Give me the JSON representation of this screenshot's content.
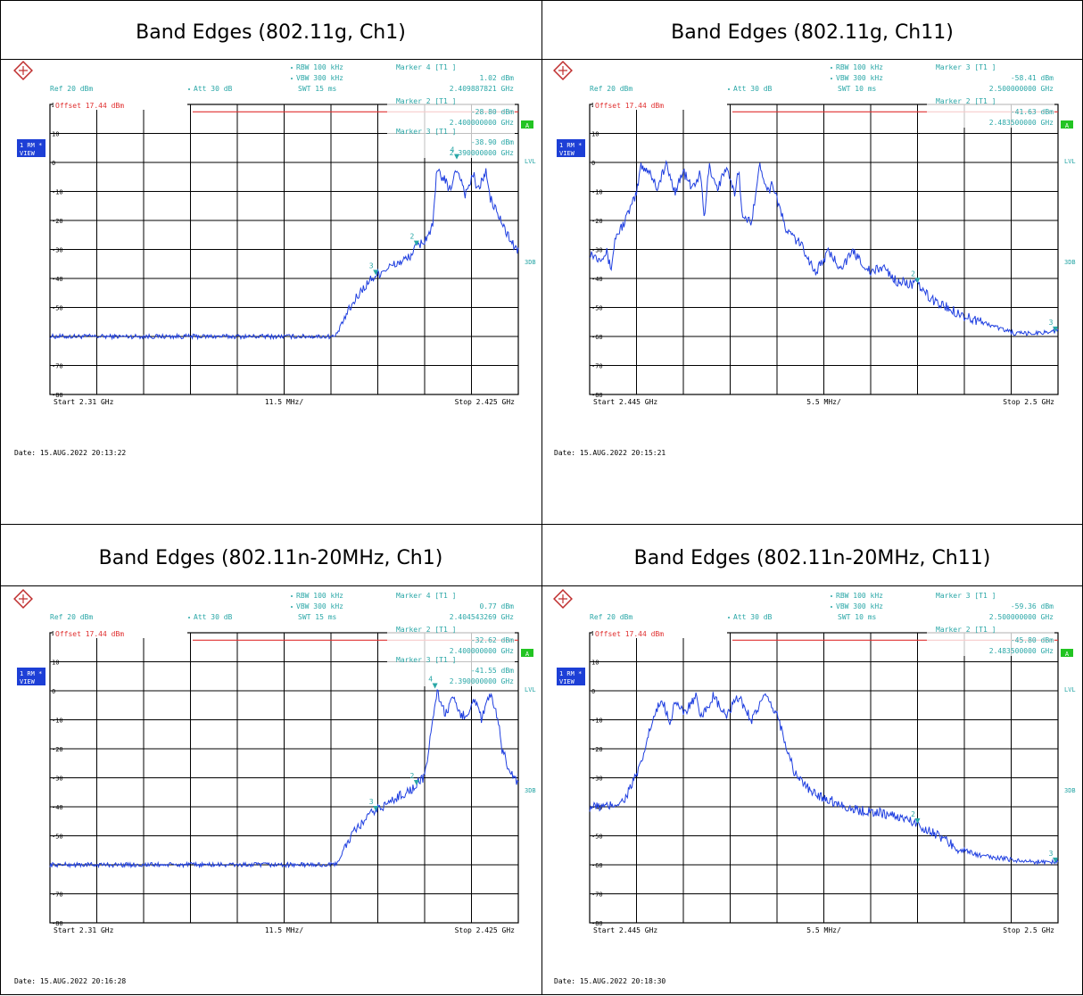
{
  "panels": [
    {
      "title": "Band Edges (802.11g, Ch1)",
      "header": {
        "rbw": "RBW 100 kHz",
        "vbw": "VBW 300 kHz",
        "swt": "SWT 15 ms",
        "ref": "Ref  20 dBm",
        "att": "Att  30 dB",
        "m1_label": "Marker 4 [T1 ]",
        "m1_val": "1.02 dBm",
        "m1_freq": "2.409887821 GHz"
      },
      "overlay": [
        {
          "l": "Marker 2 [T1 ]",
          "v": "-28.80 dBm",
          "f": "2.400000000 GHz"
        },
        {
          "l": "Marker 3 [T1 ]",
          "v": "-38.90 dBm",
          "f": "2.390000000 GHz"
        }
      ],
      "offset": "Offset  17.44  dBm",
      "start": "Start  2.31 GHz",
      "span": "11.5 MHz/",
      "stop": "Stop  2.425 GHz",
      "date": "Date:  15.AUG.2022   20:13:22"
    },
    {
      "title": "Band Edges (802.11g, Ch11)",
      "header": {
        "rbw": "RBW 100 kHz",
        "vbw": "VBW 300 kHz",
        "swt": "SWT 10 ms",
        "ref": "Ref  20 dBm",
        "att": "Att  30 dB",
        "m1_label": "Marker 3 [T1 ]",
        "m1_val": "-58.41 dBm",
        "m1_freq": "2.500000000 GHz"
      },
      "overlay": [
        {
          "l": "Marker 2 [T1 ]",
          "v": "-41.63 dBm",
          "f": "2.483500000 GHz"
        }
      ],
      "offset": "Offset  17.44  dBm",
      "start": "Start  2.445 GHz",
      "span": "5.5 MHz/",
      "stop": "Stop  2.5 GHz",
      "date": "Date:  15.AUG.2022   20:15:21"
    },
    {
      "title": "Band Edges (802.11n-20MHz, Ch1)",
      "header": {
        "rbw": "RBW 100 kHz",
        "vbw": "VBW 300 kHz",
        "swt": "SWT 15 ms",
        "ref": "Ref  20 dBm",
        "att": "Att  30 dB",
        "m1_label": "Marker 4 [T1 ]",
        "m1_val": "0.77 dBm",
        "m1_freq": "2.404543269 GHz"
      },
      "overlay": [
        {
          "l": "Marker 2 [T1 ]",
          "v": "-32.62 dBm",
          "f": "2.400000000 GHz"
        },
        {
          "l": "Marker 3 [T1 ]",
          "v": "-41.55 dBm",
          "f": "2.390000000 GHz"
        }
      ],
      "offset": "Offset  17.44  dBm",
      "start": "Start  2.31 GHz",
      "span": "11.5 MHz/",
      "stop": "Stop  2.425 GHz",
      "date": "Date:  15.AUG.2022   20:16:28"
    },
    {
      "title": "Band Edges (802.11n-20MHz, Ch11)",
      "header": {
        "rbw": "RBW 100 kHz",
        "vbw": "VBW 300 kHz",
        "swt": "SWT 10 ms",
        "ref": "Ref  20 dBm",
        "att": "Att  30 dB",
        "m1_label": "Marker 3 [T1 ]",
        "m1_val": "-59.36 dBm",
        "m1_freq": "2.500000000 GHz"
      },
      "overlay": [
        {
          "l": "Marker 2 [T1 ]",
          "v": "-45.80 dBm",
          "f": "2.483500000 GHz"
        }
      ],
      "offset": "Offset  17.44  dBm",
      "start": "Start  2.445 GHz",
      "span": "5.5 MHz/",
      "stop": "Stop  2.5 GHz",
      "date": "Date:  15.AUG.2022   20:18:30"
    }
  ],
  "side": {
    "trace": "1 RM *",
    "view": "VIEW",
    "lvl": "LVL",
    "db": "3DB",
    "a": "A"
  },
  "colors": {
    "trace": "#1f3fe0",
    "limit": "#e03030",
    "text": "#2aa7a7",
    "grid": "#000000",
    "side_box": "#1d3fd6",
    "a_box": "#22c422"
  },
  "chart_data": [
    {
      "type": "line",
      "ylim": [
        -80,
        20
      ],
      "xlim": [
        2.31,
        2.425
      ],
      "x_unit": "GHz",
      "y_unit": "dBm",
      "grid": true,
      "display_line": 17.44,
      "yticks": [
        20,
        10,
        0,
        -10,
        -20,
        -30,
        -40,
        -50,
        -70,
        -80
      ],
      "markers": [
        {
          "id": "4",
          "x": 2.409887821,
          "y": 1.02
        },
        {
          "id": "2",
          "x": 2.4,
          "y": -28.8
        },
        {
          "id": "3",
          "x": 2.39,
          "y": -38.9
        }
      ],
      "series": [
        {
          "x": [
            2.31,
            2.33,
            2.35,
            2.37,
            2.38,
            2.3805,
            2.383,
            2.386,
            2.389,
            2.392,
            2.395,
            2.398,
            2.4,
            2.402,
            2.404,
            2.405,
            2.407,
            2.408,
            2.41,
            2.411,
            2.412,
            2.414,
            2.415,
            2.417,
            2.418,
            2.42,
            2.422,
            2.424,
            2.425
          ],
          "y": [
            -60,
            -60,
            -60,
            -60,
            -60,
            -59,
            -52,
            -45,
            -40,
            -37,
            -35,
            -33,
            -29,
            -27,
            -22,
            -3,
            -6,
            -10,
            -2,
            -6,
            -11,
            -4,
            -10,
            -3,
            -12,
            -18,
            -24,
            -29,
            -31
          ]
        }
      ]
    },
    {
      "type": "line",
      "ylim": [
        -80,
        20
      ],
      "xlim": [
        2.445,
        2.5
      ],
      "x_unit": "GHz",
      "y_unit": "dBm",
      "grid": true,
      "display_line": 17.44,
      "yticks": [
        20,
        10,
        0,
        -10,
        -20,
        -30,
        -40,
        -50,
        -60,
        -70,
        -80
      ],
      "markers": [
        {
          "id": "2",
          "x": 2.4835,
          "y": -41.63
        },
        {
          "id": "3",
          "x": 2.5,
          "y": -58.41
        }
      ],
      "series": [
        {
          "x": [
            2.445,
            2.446,
            2.447,
            2.4475,
            2.448,
            2.449,
            2.4505,
            2.451,
            2.452,
            2.453,
            2.4535,
            2.454,
            2.455,
            2.456,
            2.457,
            2.458,
            2.4585,
            2.459,
            2.46,
            2.461,
            2.462,
            2.4625,
            2.463,
            2.464,
            2.465,
            2.466,
            2.4665,
            2.468,
            2.47,
            2.4715,
            2.473,
            2.4745,
            2.476,
            2.478,
            2.4795,
            2.481,
            2.483,
            2.4835,
            2.485,
            2.487,
            2.489,
            2.491,
            2.493,
            2.495,
            2.497,
            2.5
          ],
          "y": [
            -31,
            -33,
            -31,
            -37,
            -26,
            -21,
            -11,
            -1,
            -3,
            -9,
            -4,
            -1,
            -10,
            -3,
            -9,
            -4,
            -20,
            -1,
            -9,
            -2,
            -11,
            -2,
            -20,
            -20,
            -1,
            -10,
            -7,
            -23,
            -29,
            -38,
            -31,
            -36,
            -31,
            -38,
            -36,
            -41,
            -42,
            -42,
            -47,
            -50,
            -53,
            -55,
            -57,
            -59,
            -59,
            -58
          ]
        }
      ]
    },
    {
      "type": "line",
      "ylim": [
        -80,
        20
      ],
      "xlim": [
        2.31,
        2.425
      ],
      "x_unit": "GHz",
      "y_unit": "dBm",
      "grid": true,
      "display_line": 17.44,
      "yticks": [
        20,
        10,
        0,
        -10,
        -20,
        -30,
        -40,
        -50,
        -70,
        -80
      ],
      "markers": [
        {
          "id": "4",
          "x": 2.404543269,
          "y": 0.77
        },
        {
          "id": "2",
          "x": 2.4,
          "y": -32.62
        },
        {
          "id": "3",
          "x": 2.39,
          "y": -41.55
        }
      ],
      "series": [
        {
          "x": [
            2.31,
            2.33,
            2.35,
            2.37,
            2.38,
            2.381,
            2.384,
            2.387,
            2.39,
            2.393,
            2.396,
            2.399,
            2.4,
            2.402,
            2.403,
            2.404,
            2.405,
            2.407,
            2.409,
            2.411,
            2.413,
            2.414,
            2.416,
            2.418,
            2.42,
            2.421,
            2.423,
            2.425
          ],
          "y": [
            -60,
            -60,
            -60,
            -60,
            -60,
            -58,
            -50,
            -45,
            -41,
            -39,
            -36,
            -34,
            -32,
            -30,
            -20,
            -10,
            0,
            -8,
            -3,
            -9,
            -7,
            -2,
            -10,
            -1,
            -10,
            -20,
            -28,
            -32
          ]
        }
      ]
    },
    {
      "type": "line",
      "ylim": [
        -80,
        20
      ],
      "xlim": [
        2.445,
        2.5
      ],
      "x_unit": "GHz",
      "y_unit": "dBm",
      "grid": true,
      "display_line": 17.44,
      "yticks": [
        20,
        10,
        0,
        -10,
        -20,
        -30,
        -40,
        -50,
        -60,
        -70,
        -80
      ],
      "markers": [
        {
          "id": "2",
          "x": 2.4835,
          "y": -45.8
        },
        {
          "id": "3",
          "x": 2.5,
          "y": -59.36
        }
      ],
      "series": [
        {
          "x": [
            2.445,
            2.447,
            2.449,
            2.451,
            2.452,
            2.453,
            2.4535,
            2.4545,
            2.455,
            2.456,
            2.4575,
            2.458,
            2.4595,
            2.461,
            2.4625,
            2.464,
            2.4655,
            2.467,
            2.469,
            2.471,
            2.4735,
            2.476,
            2.479,
            2.482,
            2.4835,
            2.486,
            2.488,
            2.491,
            2.494,
            2.497,
            2.5
          ],
          "y": [
            -40,
            -40,
            -38,
            -26,
            -14,
            -6,
            -3,
            -11,
            -3,
            -8,
            -2,
            -10,
            -2,
            -9,
            -2,
            -10,
            -2,
            -8,
            -28,
            -35,
            -38,
            -41,
            -42,
            -44,
            -46,
            -50,
            -54,
            -57,
            -58,
            -59,
            -59
          ]
        }
      ]
    }
  ]
}
